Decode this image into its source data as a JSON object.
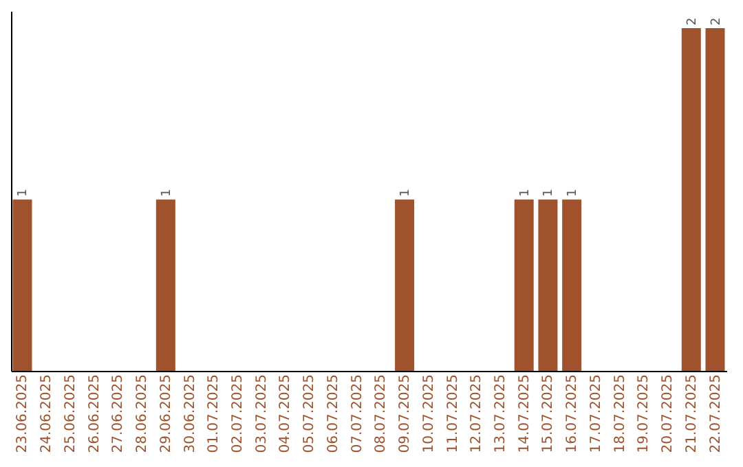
{
  "chart_data": {
    "type": "bar",
    "categories": [
      "23.06.2025",
      "24.06.2025",
      "25.06.2025",
      "26.06.2025",
      "27.06.2025",
      "28.06.2025",
      "29.06.2025",
      "30.06.2025",
      "01.07.2025",
      "02.07.2025",
      "03.07.2025",
      "04.07.2025",
      "05.07.2025",
      "06.07.2025",
      "07.07.2025",
      "08.07.2025",
      "09.07.2025",
      "10.07.2025",
      "11.07.2025",
      "12.07.2025",
      "13.07.2025",
      "14.07.2025",
      "15.07.2025",
      "16.07.2025",
      "17.07.2025",
      "18.07.2025",
      "19.07.2025",
      "20.07.2025",
      "21.07.2025",
      "22.07.2025"
    ],
    "values": [
      1,
      0,
      0,
      0,
      0,
      0,
      1,
      0,
      0,
      0,
      0,
      0,
      0,
      0,
      0,
      0,
      1,
      0,
      0,
      0,
      0,
      1,
      1,
      1,
      0,
      0,
      0,
      0,
      2,
      2
    ],
    "value_labels": [
      "1",
      null,
      null,
      null,
      null,
      null,
      "1",
      null,
      null,
      null,
      null,
      null,
      null,
      null,
      null,
      null,
      "1",
      null,
      null,
      null,
      null,
      "1",
      "1",
      "1",
      null,
      null,
      null,
      null,
      "2",
      "2"
    ],
    "color": "#a0522d",
    "ylim": [
      0,
      2.1
    ],
    "grid": false
  }
}
